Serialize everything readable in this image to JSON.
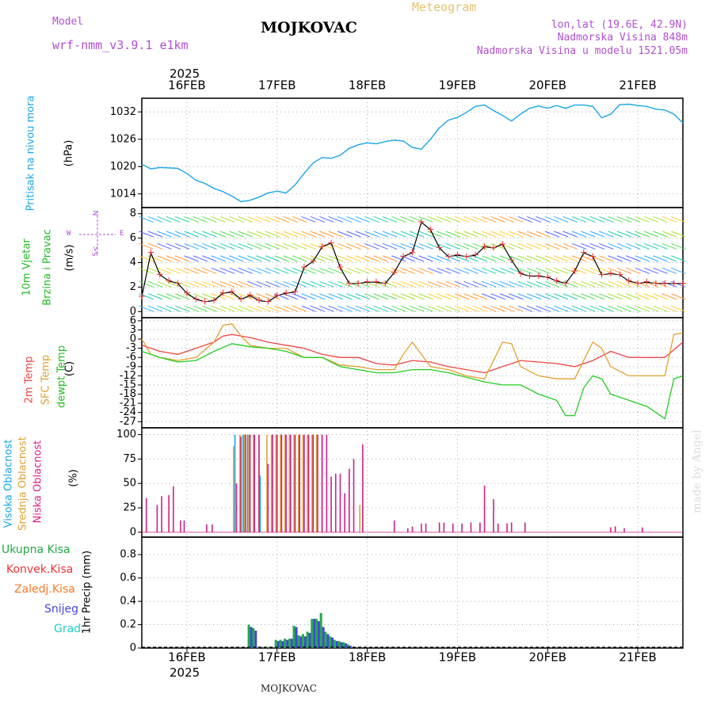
{
  "header": {
    "model_label": "Model",
    "model_name": "wrf-nmm_v3.9.1 e1km",
    "title": "MOJKOVAC",
    "meteogram_label": "Meteogram",
    "lonlat": "lon,lat (19.6E, 42.9N)",
    "elevation": "Nadmorska Visina 848m",
    "model_elevation": "Nadmorska Visina u modelu 1521.05m"
  },
  "footer": {
    "station": "MOJKOVAC",
    "watermark": "made by Angel"
  },
  "colors": {
    "pressure": "#1aa6e8",
    "temp2m": "#ee4444",
    "sfc": "#e0a030",
    "dewpt": "#22cc22",
    "high": "#1aa6e8",
    "mid": "#e0a030",
    "low": "#cc2288",
    "total": "#22aa44",
    "convective": "#ee3333",
    "freezing": "#ff7722",
    "snow": "#4444dd",
    "hail": "#22cccc"
  },
  "chart_data": {
    "type": "line",
    "year": "2025",
    "x_ticks": [
      "16FEB",
      "17FEB",
      "18FEB",
      "19FEB",
      "20FEB",
      "21FEB"
    ],
    "panels": [
      {
        "id": "pressure",
        "ylabel": "(hPa)",
        "side_label": "Pritisak na nivou mora",
        "yticks": [
          1014,
          1020,
          1026,
          1032
        ],
        "ylim": [
          1011,
          1035
        ],
        "series": [
          {
            "x": [
              -0.5,
              -0.4,
              -0.3,
              -0.1,
              0.0,
              0.1,
              0.2,
              0.3,
              0.4,
              0.5,
              0.6,
              0.7,
              0.8,
              0.9,
              1.0,
              1.1,
              1.2,
              1.3,
              1.4,
              1.5,
              1.6,
              1.7,
              1.8,
              1.9,
              2.0,
              2.1,
              2.2,
              2.3,
              2.4,
              2.5,
              2.6,
              2.7,
              2.8,
              2.9,
              3.0,
              3.1,
              3.2,
              3.3,
              3.4,
              3.5,
              3.6,
              3.7,
              3.8,
              3.9,
              4.0,
              4.1,
              4.2,
              4.3,
              4.4,
              4.5,
              4.6,
              4.7,
              4.8,
              4.9,
              5.0,
              5.1,
              5.2,
              5.3,
              5.4,
              5.5
            ],
            "values": [
              1020.5,
              1019.5,
              1019.8,
              1019.6,
              1018.5,
              1017,
              1016.3,
              1015.2,
              1014.5,
              1013.5,
              1012.3,
              1012.6,
              1013.3,
              1014.2,
              1014.6,
              1014.2,
              1016,
              1018.5,
              1020.8,
              1022,
              1021.8,
              1022.5,
              1024,
              1024.8,
              1025.2,
              1025,
              1025.5,
              1025.8,
              1025.6,
              1024.2,
              1023.8,
              1026,
              1028.5,
              1030.2,
              1030.8,
              1031.9,
              1033.2,
              1033.5,
              1032.3,
              1031.2,
              1030,
              1031.5,
              1032.8,
              1033.3,
              1032.8,
              1033.4,
              1032.8,
              1033.5,
              1033.5,
              1033.2,
              1030.7,
              1031.5,
              1033.6,
              1033.7,
              1033.4,
              1033.2,
              1032.6,
              1032.4,
              1031.5,
              1029.6
            ]
          }
        ]
      },
      {
        "id": "wind",
        "ylabel": "(m/s)",
        "side_label_1": "10m Vjetar",
        "side_label_2": "Brzina i Pravac",
        "compass": "N",
        "compass_w": "W",
        "compass_e": "E",
        "compass_s": "S<",
        "yticks": [
          0,
          2,
          4,
          6,
          8
        ],
        "ylim": [
          -0.5,
          8.5
        ],
        "series": [
          {
            "name": "wind speed",
            "x": [
              -0.5,
              -0.4,
              -0.3,
              -0.2,
              -0.1,
              0.0,
              0.1,
              0.2,
              0.3,
              0.4,
              0.5,
              0.6,
              0.7,
              0.8,
              0.9,
              1.0,
              1.1,
              1.2,
              1.3,
              1.4,
              1.5,
              1.6,
              1.7,
              1.8,
              1.9,
              2.0,
              2.1,
              2.2,
              2.3,
              2.4,
              2.5,
              2.6,
              2.7,
              2.8,
              2.9,
              3.0,
              3.1,
              3.2,
              3.3,
              3.4,
              3.5,
              3.6,
              3.7,
              3.8,
              3.9,
              4.0,
              4.1,
              4.2,
              4.3,
              4.4,
              4.5,
              4.6,
              4.7,
              4.8,
              4.9,
              5.0,
              5.1,
              5.2,
              5.3,
              5.4,
              5.5
            ],
            "values": [
              1.2,
              4.8,
              3.0,
              2.5,
              2.3,
              1.5,
              1.0,
              0.8,
              0.9,
              1.5,
              1.6,
              1.0,
              1.3,
              0.9,
              0.8,
              1.3,
              1.5,
              1.6,
              3.6,
              4.1,
              5.3,
              5.6,
              3.6,
              2.3,
              2.3,
              2.4,
              2.4,
              2.3,
              3.2,
              4.5,
              4.8,
              7.3,
              6.7,
              5.2,
              4.5,
              4.6,
              4.5,
              4.6,
              5.3,
              5.2,
              5.5,
              4.2,
              3.1,
              2.9,
              2.9,
              2.8,
              2.5,
              2.3,
              3.3,
              4.8,
              4.5,
              3.0,
              3.1,
              3.0,
              2.5,
              2.3,
              2.4,
              2.3,
              2.3,
              2.3,
              2.3
            ]
          }
        ]
      },
      {
        "id": "temperature",
        "ylabel": "(C)",
        "side_label_1": "2m Temp",
        "side_label_2": "SFC Temp",
        "side_label_3": "dewpt Temp",
        "yticks": [
          6,
          3,
          0,
          -3,
          -6,
          -9,
          -12,
          -15,
          -18,
          -21,
          -24,
          -27
        ],
        "ylim": [
          -29,
          7
        ],
        "series": [
          {
            "name": "2m Temp",
            "x": [
              -0.5,
              -0.3,
              -0.1,
              0.1,
              0.3,
              0.4,
              0.5,
              0.7,
              0.9,
              1.1,
              1.3,
              1.5,
              1.7,
              1.9,
              2.1,
              2.3,
              2.5,
              2.7,
              2.9,
              3.1,
              3.3,
              3.5,
              3.7,
              3.9,
              4.1,
              4.3,
              4.5,
              4.7,
              4.9,
              5.1,
              5.3,
              5.5
            ],
            "values": [
              -2,
              -4,
              -5,
              -3,
              -1,
              1,
              1.5,
              0.5,
              -1,
              -2,
              -3,
              -5,
              -6,
              -6,
              -8,
              -8.5,
              -7,
              -7.5,
              -9,
              -10,
              -11,
              -9,
              -7,
              -7.5,
              -8,
              -9,
              -7,
              -4,
              -6,
              -6,
              -6,
              -1
            ]
          },
          {
            "name": "SFC Temp",
            "x": [
              -0.5,
              -0.4,
              -0.3,
              -0.1,
              0.1,
              0.3,
              0.4,
              0.5,
              0.6,
              0.7,
              0.9,
              1.1,
              1.3,
              1.5,
              1.7,
              1.9,
              2.1,
              2.3,
              2.4,
              2.5,
              2.6,
              2.7,
              2.9,
              3.1,
              3.3,
              3.4,
              3.5,
              3.6,
              3.7,
              3.9,
              4.1,
              4.3,
              4.4,
              4.5,
              4.6,
              4.7,
              4.9,
              5.1,
              5.3,
              5.4,
              5.5
            ],
            "values": [
              0,
              -5,
              -6,
              -7,
              -6,
              -1,
              4.5,
              5,
              1,
              -2,
              -3,
              -3,
              -6,
              -6,
              -8.5,
              -9,
              -10,
              -10,
              -5,
              -1,
              -5,
              -9,
              -10,
              -12,
              -13,
              -7,
              -1,
              -1.5,
              -9,
              -12,
              -13,
              -13,
              -7,
              -1,
              -3,
              -9,
              -12,
              -12,
              -12,
              1.5,
              2
            ]
          },
          {
            "name": "dewpt Temp",
            "x": [
              -0.5,
              -0.3,
              -0.1,
              0.1,
              0.3,
              0.5,
              0.7,
              0.9,
              1.1,
              1.3,
              1.5,
              1.7,
              1.9,
              2.1,
              2.3,
              2.5,
              2.7,
              2.9,
              3.1,
              3.3,
              3.5,
              3.7,
              3.9,
              4.1,
              4.2,
              4.3,
              4.4,
              4.5,
              4.6,
              4.7,
              4.9,
              5.1,
              5.2,
              5.3,
              5.4,
              5.5
            ],
            "values": [
              -4,
              -6,
              -7.5,
              -7,
              -4,
              -1.5,
              -2.5,
              -3,
              -4,
              -6,
              -6,
              -9,
              -10,
              -11,
              -11,
              -10,
              -10,
              -11,
              -12.5,
              -14,
              -15,
              -15,
              -18,
              -20,
              -25,
              -25,
              -16,
              -12,
              -13,
              -18,
              -20,
              -22,
              -24,
              -26,
              -13,
              -12
            ]
          }
        ]
      },
      {
        "id": "clouds",
        "ylabel": "(%)",
        "side_label_1": "Visoka Oblacnost",
        "side_label_2": "Srednja Oblacnost",
        "side_label_3": "Niska Oblacnost",
        "yticks": [
          0,
          25,
          50,
          75,
          100
        ],
        "ylim": [
          -5,
          107
        ],
        "low_x": [
          -0.45,
          -0.33,
          -0.28,
          -0.2,
          -0.15,
          -0.07,
          -0.03,
          0.22,
          0.28,
          0.55,
          0.6,
          0.65,
          0.7,
          0.75,
          0.8,
          0.9,
          0.95,
          1.0,
          1.05,
          1.1,
          1.15,
          1.2,
          1.25,
          1.3,
          1.35,
          1.4,
          1.45,
          1.5,
          1.55,
          1.6,
          1.65,
          1.7,
          1.75,
          1.8,
          1.85,
          1.95,
          2.3,
          2.45,
          2.5,
          2.6,
          2.65,
          2.8,
          2.85,
          2.95,
          3.05,
          3.15,
          3.25,
          3.3,
          3.4,
          3.45,
          3.55,
          3.6,
          3.75,
          4.7,
          4.75,
          4.85,
          5.05
        ],
        "low_values": [
          35,
          28,
          37,
          38,
          47,
          12,
          12,
          8,
          8,
          50,
          98,
          100,
          100,
          100,
          100,
          70,
          100,
          100,
          100,
          100,
          100,
          100,
          100,
          100,
          100,
          100,
          100,
          100,
          100,
          57,
          60,
          60,
          40,
          65,
          75,
          90,
          12,
          4,
          6,
          9,
          9,
          10,
          10,
          9,
          9,
          10,
          10,
          48,
          34,
          9,
          9,
          10,
          10,
          5,
          6,
          4,
          5
        ],
        "mid_x": [
          0.5,
          0.57,
          0.62,
          0.67,
          0.72,
          0.78,
          0.87,
          0.92,
          0.97,
          1.02,
          1.07,
          1.12,
          1.17,
          1.22,
          1.27,
          1.32,
          1.37,
          1.42,
          1.48,
          1.9
        ],
        "mid_values": [
          88,
          100,
          100,
          100,
          100,
          100,
          100,
          100,
          100,
          100,
          100,
          100,
          100,
          100,
          100,
          100,
          100,
          100,
          100,
          28
        ],
        "high_x": [
          0.55,
          0.64,
          0.69,
          0.83
        ],
        "high_values": [
          100,
          100,
          100,
          58
        ]
      },
      {
        "id": "precip",
        "ylabel": "1hr Precip (mm)",
        "side_labels": [
          "Ukupna Kisa",
          "Konvek.Kisa",
          "Zaledj.Kisa",
          "Snijeg",
          "Grad"
        ],
        "yticks": [
          0,
          0.2,
          0.4,
          0.6,
          0.8
        ],
        "ylim": [
          0,
          0.95
        ],
        "x": [
          0.7,
          0.75,
          0.8,
          0.9,
          1.0,
          1.05,
          1.1,
          1.15,
          1.2,
          1.25,
          1.3,
          1.35,
          1.4,
          1.45,
          1.5,
          1.55,
          1.6,
          1.65,
          1.7,
          1.75,
          1.8
        ],
        "total": [
          0.2,
          0.17,
          0.01,
          0.01,
          0.07,
          0.07,
          0.08,
          0.08,
          0.19,
          0.11,
          0.12,
          0.14,
          0.25,
          0.25,
          0.3,
          0.14,
          0.1,
          0.07,
          0.06,
          0.05,
          0.03
        ],
        "snow": [
          0.18,
          0.15,
          0,
          0,
          0.06,
          0.06,
          0.07,
          0.08,
          0.18,
          0.1,
          0.1,
          0.13,
          0.25,
          0.23,
          0.18,
          0.12,
          0.09,
          0.06,
          0.05,
          0.04,
          0.02
        ]
      }
    ]
  }
}
